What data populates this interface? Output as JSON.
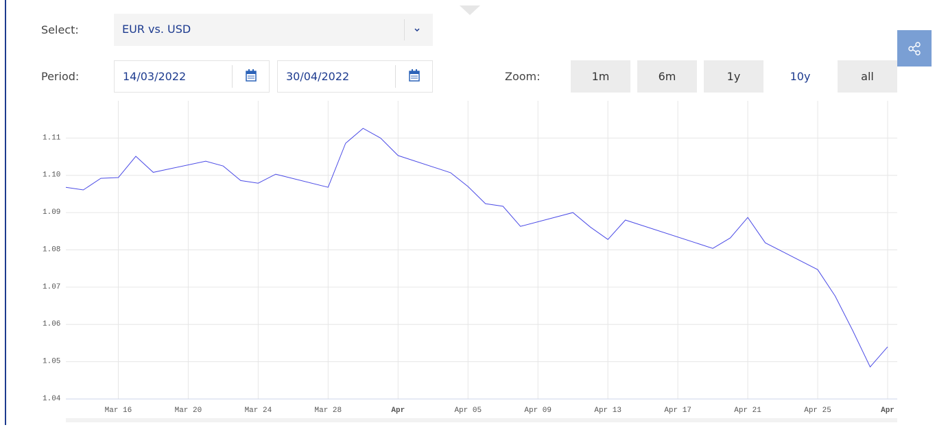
{
  "controls": {
    "select_label": "Select:",
    "select_value": "EUR vs. USD",
    "period_label": "Period:",
    "period_from": "14/03/2022",
    "period_to": "30/04/2022",
    "zoom_label": "Zoom:",
    "zoom_buttons": [
      "1m",
      "6m",
      "1y",
      "10y",
      "all"
    ],
    "zoom_active": "10y"
  },
  "chart_data": {
    "type": "line",
    "x": [
      "Mar 13",
      "Mar 14",
      "Mar 15",
      "Mar 16",
      "Mar 17",
      "Mar 18",
      "Mar 21",
      "Mar 22",
      "Mar 23",
      "Mar 24",
      "Mar 25",
      "Mar 28",
      "Mar 29",
      "Mar 30",
      "Mar 31",
      "Apr 01",
      "Apr 04",
      "Apr 05",
      "Apr 06",
      "Apr 07",
      "Apr 08",
      "Apr 11",
      "Apr 12",
      "Apr 13",
      "Apr 14",
      "Apr 19",
      "Apr 20",
      "Apr 21",
      "Apr 22",
      "Apr 25",
      "Apr 26",
      "Apr 27",
      "Apr 28",
      "Apr 29"
    ],
    "series": [
      {
        "name": "EUR vs. USD",
        "color": "#4b4be6",
        "values": [
          1.0968,
          1.0961,
          1.0992,
          1.0994,
          1.1051,
          1.1008,
          1.1038,
          1.1025,
          1.0986,
          1.0979,
          1.1003,
          1.0968,
          1.1086,
          1.1126,
          1.11,
          1.1053,
          1.1007,
          1.097,
          1.0924,
          1.0917,
          1.0863,
          1.09,
          1.0861,
          1.0828,
          1.088,
          1.0804,
          1.0832,
          1.0887,
          1.0819,
          1.0747,
          1.0676,
          1.0584,
          1.0486,
          1.054
        ]
      }
    ],
    "xlim": [
      "Mar 13",
      "Apr 29"
    ],
    "xticks": [
      "Mar 16",
      "Mar 20",
      "Mar 24",
      "Mar 28",
      {
        "value": "Apr 01",
        "label": "Apr"
      },
      "Apr 05",
      "Apr 09",
      "Apr 13",
      "Apr 17",
      "Apr 21",
      "Apr 25",
      {
        "value": "Apr 29",
        "label": "Apr"
      }
    ],
    "ylim": [
      1.04,
      1.12
    ],
    "yticks": [
      1.04,
      1.05,
      1.06,
      1.07,
      1.08,
      1.09,
      {
        "value": 1.1,
        "label": "1.10"
      },
      1.11
    ],
    "grid": true
  }
}
